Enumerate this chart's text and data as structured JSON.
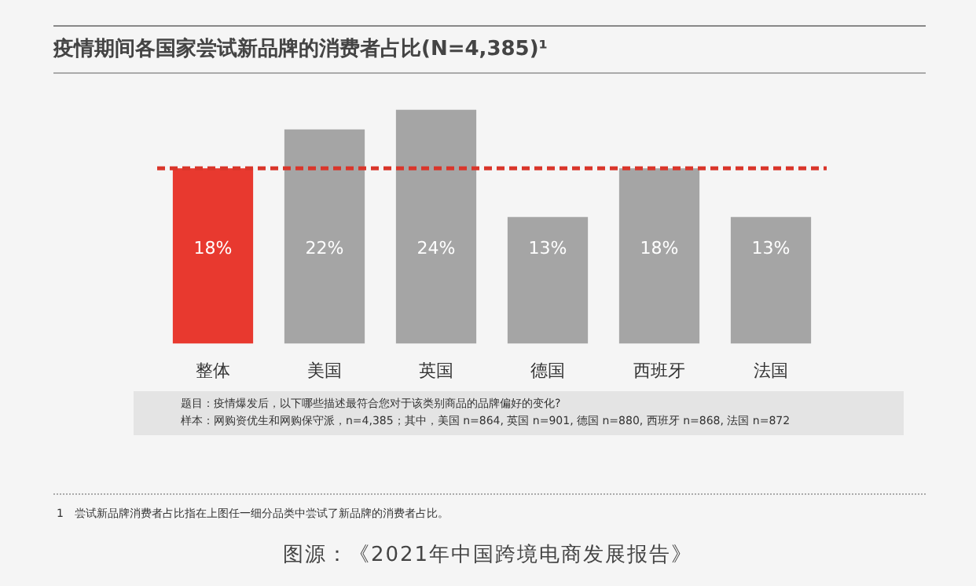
{
  "chart_data": {
    "type": "bar",
    "title": "疫情期间各国家尝试新品牌的消费者占比(N=4,385)¹",
    "categories": [
      "整体",
      "美国",
      "英国",
      "德国",
      "西班牙",
      "法国"
    ],
    "values": [
      18,
      22,
      24,
      13,
      18,
      13
    ],
    "colors": [
      "#e8392f",
      "#a5a5a5",
      "#a5a5a5",
      "#a5a5a5",
      "#a5a5a5",
      "#a5a5a5"
    ],
    "value_labels": [
      "18%",
      "22%",
      "24%",
      "13%",
      "18%",
      "13%"
    ],
    "ref_lines": [
      {
        "axis": "y",
        "value": 18,
        "label": null,
        "color": "#d9362b",
        "line_style": "dashed"
      }
    ],
    "grid": false,
    "legend": false,
    "tick_labels": "x",
    "annotations": [
      "题目：疫情爆发后，以下哪些描述最符合您对于该类别商品的品牌偏好的变化?",
      "样本：网购资优生和网购保守派，n=4,385；其中，美国 n=864, 英国 n=901, 德国 n=880, 西班牙 n=868, 法国 n=872",
      "1　尝试新品牌消费者占比指在上图任一细分品类中尝试了新品牌的消费者占比。",
      "图源：《2021年中国跨境电商发展报告》"
    ]
  }
}
